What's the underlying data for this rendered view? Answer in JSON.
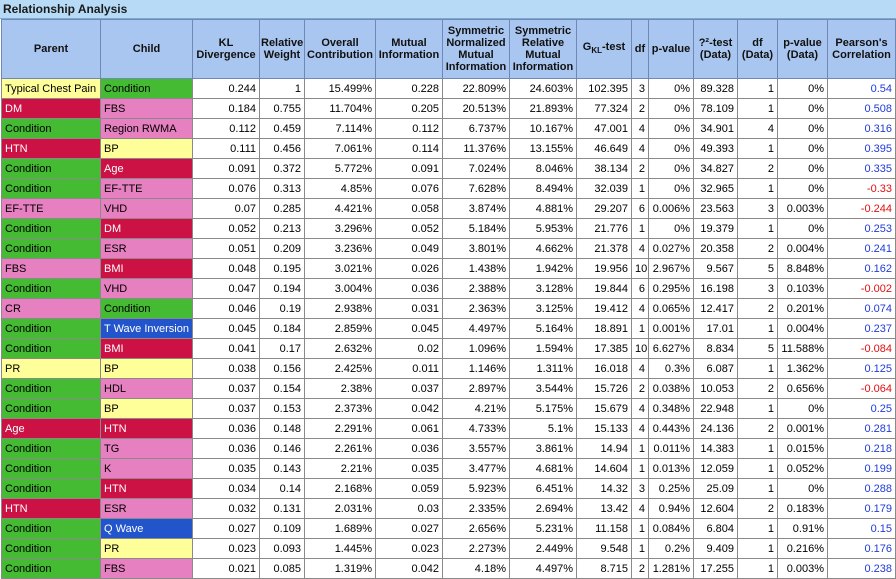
{
  "title": "Relationship Analysis",
  "columns": [
    "Parent",
    "Child",
    "KL Divergence",
    "Relative Weight",
    "Overall Contribution",
    "Mutual Information",
    "Symmetric Normalized Mutual Information",
    "Symmetric Relative Mutual Information",
    "GKL-test",
    "df",
    "p-value",
    "?²-test (Data)",
    "df (Data)",
    "p-value (Data)",
    "Pearson's Correlation"
  ],
  "colors": {
    "green": "#44bb33",
    "red": "#cc1144",
    "yellow": "#ffff99",
    "pink": "#e680c0",
    "blue": "#2255cc"
  },
  "rows": [
    {
      "parent": "Typical Chest Pain",
      "pc": "yellow",
      "child": "Condition",
      "cc": "green",
      "kl": "0.244",
      "rw": "1",
      "oc": "15.499%",
      "mi": "0.228",
      "snmi": "22.809%",
      "srmi": "24.603%",
      "g": "102.395",
      "df": "3",
      "p": "0%",
      "chi": "89.328",
      "dfd": "1",
      "pd": "0%",
      "corr": "0.54"
    },
    {
      "parent": "DM",
      "pc": "red",
      "child": "FBS",
      "cc": "pink",
      "kl": "0.184",
      "rw": "0.755",
      "oc": "11.704%",
      "mi": "0.205",
      "snmi": "20.513%",
      "srmi": "21.893%",
      "g": "77.324",
      "df": "2",
      "p": "0%",
      "chi": "78.109",
      "dfd": "1",
      "pd": "0%",
      "corr": "0.508"
    },
    {
      "parent": "Condition",
      "pc": "green",
      "child": "Region RWMA",
      "cc": "pink",
      "kl": "0.112",
      "rw": "0.459",
      "oc": "7.114%",
      "mi": "0.112",
      "snmi": "6.737%",
      "srmi": "10.167%",
      "g": "47.001",
      "df": "4",
      "p": "0%",
      "chi": "34.901",
      "dfd": "4",
      "pd": "0%",
      "corr": "0.316"
    },
    {
      "parent": "HTN",
      "pc": "red",
      "child": "BP",
      "cc": "yellow",
      "kl": "0.111",
      "rw": "0.456",
      "oc": "7.061%",
      "mi": "0.114",
      "snmi": "11.376%",
      "srmi": "13.155%",
      "g": "46.649",
      "df": "4",
      "p": "0%",
      "chi": "49.393",
      "dfd": "1",
      "pd": "0%",
      "corr": "0.395"
    },
    {
      "parent": "Condition",
      "pc": "green",
      "child": "Age",
      "cc": "red",
      "kl": "0.091",
      "rw": "0.372",
      "oc": "5.772%",
      "mi": "0.091",
      "snmi": "7.024%",
      "srmi": "8.046%",
      "g": "38.134",
      "df": "2",
      "p": "0%",
      "chi": "34.827",
      "dfd": "2",
      "pd": "0%",
      "corr": "0.335"
    },
    {
      "parent": "Condition",
      "pc": "green",
      "child": "EF-TTE",
      "cc": "pink",
      "kl": "0.076",
      "rw": "0.313",
      "oc": "4.85%",
      "mi": "0.076",
      "snmi": "7.628%",
      "srmi": "8.494%",
      "g": "32.039",
      "df": "1",
      "p": "0%",
      "chi": "32.965",
      "dfd": "1",
      "pd": "0%",
      "corr": "-0.33"
    },
    {
      "parent": "EF-TTE",
      "pc": "pink",
      "child": "VHD",
      "cc": "pink",
      "kl": "0.07",
      "rw": "0.285",
      "oc": "4.421%",
      "mi": "0.058",
      "snmi": "3.874%",
      "srmi": "4.881%",
      "g": "29.207",
      "df": "6",
      "p": "0.006%",
      "chi": "23.563",
      "dfd": "3",
      "pd": "0.003%",
      "corr": "-0.244"
    },
    {
      "parent": "Condition",
      "pc": "green",
      "child": "DM",
      "cc": "red",
      "kl": "0.052",
      "rw": "0.213",
      "oc": "3.296%",
      "mi": "0.052",
      "snmi": "5.184%",
      "srmi": "5.953%",
      "g": "21.776",
      "df": "1",
      "p": "0%",
      "chi": "19.379",
      "dfd": "1",
      "pd": "0%",
      "corr": "0.253"
    },
    {
      "parent": "Condition",
      "pc": "green",
      "child": "ESR",
      "cc": "pink",
      "kl": "0.051",
      "rw": "0.209",
      "oc": "3.236%",
      "mi": "0.049",
      "snmi": "3.801%",
      "srmi": "4.662%",
      "g": "21.378",
      "df": "4",
      "p": "0.027%",
      "chi": "20.358",
      "dfd": "2",
      "pd": "0.004%",
      "corr": "0.241"
    },
    {
      "parent": "FBS",
      "pc": "pink",
      "child": "BMI",
      "cc": "red",
      "kl": "0.048",
      "rw": "0.195",
      "oc": "3.021%",
      "mi": "0.026",
      "snmi": "1.438%",
      "srmi": "1.942%",
      "g": "19.956",
      "df": "10",
      "p": "2.967%",
      "chi": "9.567",
      "dfd": "5",
      "pd": "8.848%",
      "corr": "0.162"
    },
    {
      "parent": "Condition",
      "pc": "green",
      "child": "VHD",
      "cc": "pink",
      "kl": "0.047",
      "rw": "0.194",
      "oc": "3.004%",
      "mi": "0.036",
      "snmi": "2.388%",
      "srmi": "3.128%",
      "g": "19.844",
      "df": "6",
      "p": "0.295%",
      "chi": "16.198",
      "dfd": "3",
      "pd": "0.103%",
      "corr": "-0.002"
    },
    {
      "parent": "CR",
      "pc": "pink",
      "child": "Condition",
      "cc": "green",
      "kl": "0.046",
      "rw": "0.19",
      "oc": "2.938%",
      "mi": "0.031",
      "snmi": "2.363%",
      "srmi": "3.125%",
      "g": "19.412",
      "df": "4",
      "p": "0.065%",
      "chi": "12.417",
      "dfd": "2",
      "pd": "0.201%",
      "corr": "0.074"
    },
    {
      "parent": "Condition",
      "pc": "green",
      "child": "T Wave Inversion",
      "cc": "blue",
      "kl": "0.045",
      "rw": "0.184",
      "oc": "2.859%",
      "mi": "0.045",
      "snmi": "4.497%",
      "srmi": "5.164%",
      "g": "18.891",
      "df": "1",
      "p": "0.001%",
      "chi": "17.01",
      "dfd": "1",
      "pd": "0.004%",
      "corr": "0.237"
    },
    {
      "parent": "Condition",
      "pc": "green",
      "child": "BMI",
      "cc": "red",
      "kl": "0.041",
      "rw": "0.17",
      "oc": "2.632%",
      "mi": "0.02",
      "snmi": "1.096%",
      "srmi": "1.594%",
      "g": "17.385",
      "df": "10",
      "p": "6.627%",
      "chi": "8.834",
      "dfd": "5",
      "pd": "11.588%",
      "corr": "-0.084"
    },
    {
      "parent": "PR",
      "pc": "yellow",
      "child": "BP",
      "cc": "yellow",
      "kl": "0.038",
      "rw": "0.156",
      "oc": "2.425%",
      "mi": "0.011",
      "snmi": "1.146%",
      "srmi": "1.311%",
      "g": "16.018",
      "df": "4",
      "p": "0.3%",
      "chi": "6.087",
      "dfd": "1",
      "pd": "1.362%",
      "corr": "0.125"
    },
    {
      "parent": "Condition",
      "pc": "green",
      "child": "HDL",
      "cc": "pink",
      "kl": "0.037",
      "rw": "0.154",
      "oc": "2.38%",
      "mi": "0.037",
      "snmi": "2.897%",
      "srmi": "3.544%",
      "g": "15.726",
      "df": "2",
      "p": "0.038%",
      "chi": "10.053",
      "dfd": "2",
      "pd": "0.656%",
      "corr": "-0.064"
    },
    {
      "parent": "Condition",
      "pc": "green",
      "child": "BP",
      "cc": "yellow",
      "kl": "0.037",
      "rw": "0.153",
      "oc": "2.373%",
      "mi": "0.042",
      "snmi": "4.21%",
      "srmi": "5.175%",
      "g": "15.679",
      "df": "4",
      "p": "0.348%",
      "chi": "22.948",
      "dfd": "1",
      "pd": "0%",
      "corr": "0.25"
    },
    {
      "parent": "Age",
      "pc": "red",
      "child": "HTN",
      "cc": "red",
      "kl": "0.036",
      "rw": "0.148",
      "oc": "2.291%",
      "mi": "0.061",
      "snmi": "4.733%",
      "srmi": "5.1%",
      "g": "15.133",
      "df": "4",
      "p": "0.443%",
      "chi": "24.136",
      "dfd": "2",
      "pd": "0.001%",
      "corr": "0.281"
    },
    {
      "parent": "Condition",
      "pc": "green",
      "child": "TG",
      "cc": "pink",
      "kl": "0.036",
      "rw": "0.146",
      "oc": "2.261%",
      "mi": "0.036",
      "snmi": "3.557%",
      "srmi": "3.861%",
      "g": "14.94",
      "df": "1",
      "p": "0.011%",
      "chi": "14.383",
      "dfd": "1",
      "pd": "0.015%",
      "corr": "0.218"
    },
    {
      "parent": "Condition",
      "pc": "green",
      "child": "K",
      "cc": "pink",
      "kl": "0.035",
      "rw": "0.143",
      "oc": "2.21%",
      "mi": "0.035",
      "snmi": "3.477%",
      "srmi": "4.681%",
      "g": "14.604",
      "df": "1",
      "p": "0.013%",
      "chi": "12.059",
      "dfd": "1",
      "pd": "0.052%",
      "corr": "0.199"
    },
    {
      "parent": "Condition",
      "pc": "green",
      "child": "HTN",
      "cc": "red",
      "kl": "0.034",
      "rw": "0.14",
      "oc": "2.168%",
      "mi": "0.059",
      "snmi": "5.923%",
      "srmi": "6.451%",
      "g": "14.32",
      "df": "3",
      "p": "0.25%",
      "chi": "25.09",
      "dfd": "1",
      "pd": "0%",
      "corr": "0.288"
    },
    {
      "parent": "HTN",
      "pc": "red",
      "child": "ESR",
      "cc": "pink",
      "kl": "0.032",
      "rw": "0.131",
      "oc": "2.031%",
      "mi": "0.03",
      "snmi": "2.335%",
      "srmi": "2.694%",
      "g": "13.42",
      "df": "4",
      "p": "0.94%",
      "chi": "12.604",
      "dfd": "2",
      "pd": "0.183%",
      "corr": "0.179"
    },
    {
      "parent": "Condition",
      "pc": "green",
      "child": "Q Wave",
      "cc": "blue",
      "kl": "0.027",
      "rw": "0.109",
      "oc": "1.689%",
      "mi": "0.027",
      "snmi": "2.656%",
      "srmi": "5.231%",
      "g": "11.158",
      "df": "1",
      "p": "0.084%",
      "chi": "6.804",
      "dfd": "1",
      "pd": "0.91%",
      "corr": "0.15"
    },
    {
      "parent": "Condition",
      "pc": "green",
      "child": "PR",
      "cc": "yellow",
      "kl": "0.023",
      "rw": "0.093",
      "oc": "1.445%",
      "mi": "0.023",
      "snmi": "2.273%",
      "srmi": "2.449%",
      "g": "9.548",
      "df": "1",
      "p": "0.2%",
      "chi": "9.409",
      "dfd": "1",
      "pd": "0.216%",
      "corr": "0.176"
    },
    {
      "parent": "Condition",
      "pc": "green",
      "child": "FBS",
      "cc": "pink",
      "kl": "0.021",
      "rw": "0.085",
      "oc": "1.319%",
      "mi": "0.042",
      "snmi": "4.18%",
      "srmi": "4.497%",
      "g": "8.715",
      "df": "2",
      "p": "1.281%",
      "chi": "17.255",
      "dfd": "1",
      "pd": "0.003%",
      "corr": "0.238"
    }
  ]
}
